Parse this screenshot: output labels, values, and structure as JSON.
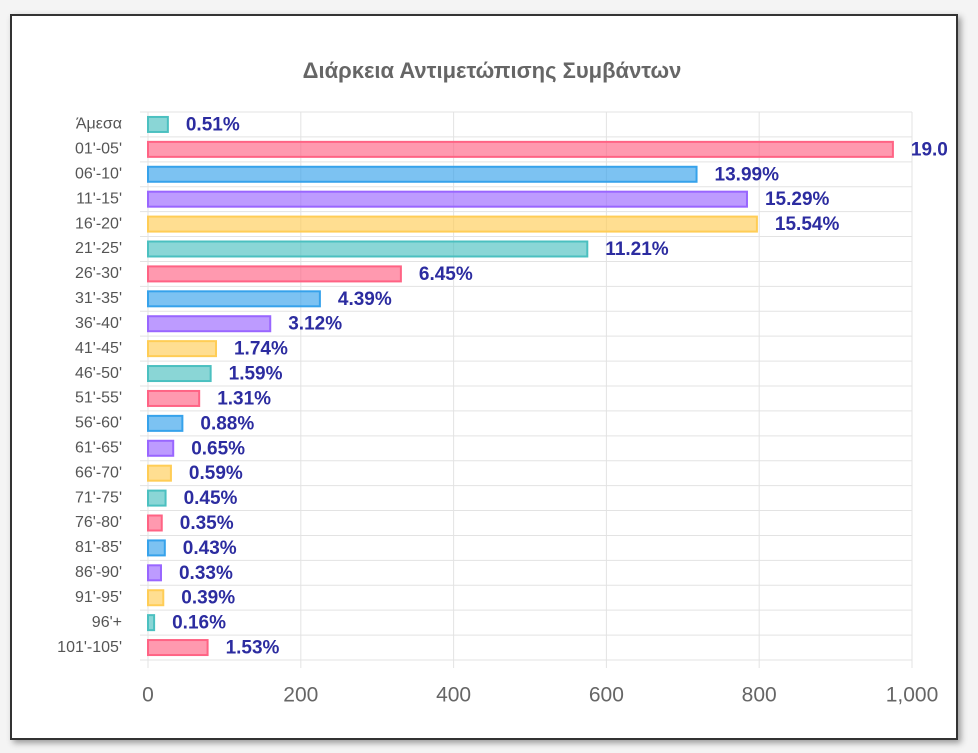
{
  "chart_data": {
    "type": "hbar",
    "title": "Διάρκεια Αντιμετώπισης Συμβάντων",
    "categories": [
      "Άμεσα",
      "01'-05'",
      "06'-10'",
      "11'-15'",
      "16'-20'",
      "21'-25'",
      "26'-30'",
      "31'-35'",
      "36'-40'",
      "41'-45'",
      "46'-50'",
      "51'-55'",
      "56'-60'",
      "61'-65'",
      "66'-70'",
      "71'-75'",
      "76'-80'",
      "81'-85'",
      "86'-90'",
      "91'-95'",
      "96'+",
      "101'-105'"
    ],
    "values": [
      26,
      975,
      718,
      784,
      797,
      575,
      331,
      225,
      160,
      89,
      82,
      67,
      45,
      33,
      30,
      23,
      18,
      22,
      17,
      20,
      8,
      78
    ],
    "percent_values": [
      0.51,
      19.0,
      13.99,
      15.29,
      15.54,
      11.21,
      6.45,
      4.39,
      3.12,
      1.74,
      1.59,
      1.31,
      0.88,
      0.65,
      0.59,
      0.45,
      0.35,
      0.43,
      0.33,
      0.39,
      0.16,
      1.53
    ],
    "percent_labels": [
      "0.51%",
      "19.0",
      "13.99%",
      "15.29%",
      "15.54%",
      "11.21%",
      "6.45%",
      "4.39%",
      "3.12%",
      "1.74%",
      "1.59%",
      "1.31%",
      "0.88%",
      "0.65%",
      "0.59%",
      "0.45%",
      "0.35%",
      "0.43%",
      "0.33%",
      "0.39%",
      "0.16%",
      "1.53%"
    ],
    "palette": [
      "#4bc0c0",
      "#ff6384",
      "#36a2eb",
      "#9966ff",
      "#ffcd56"
    ],
    "xlim": [
      0,
      1000
    ],
    "xticks": [
      0,
      200,
      400,
      600,
      800,
      {
        "value": 1000,
        "label": "1,000"
      }
    ],
    "grid": true
  }
}
